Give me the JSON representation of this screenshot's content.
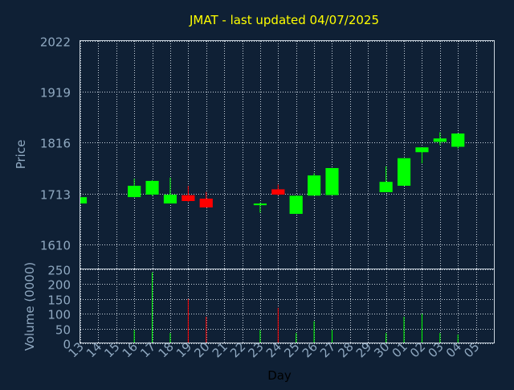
{
  "chart_data": {
    "type": "candlestick",
    "title": "JMAT - last updated 04/07/2025",
    "xlabel": "Day",
    "ylabel": "Price",
    "volume_label": "Volume (0000)",
    "price_ticks": [
      "2022",
      "1919",
      "1816",
      "1713",
      "1610"
    ],
    "volume_ticks": [
      "250",
      "200",
      "150",
      "100",
      "50",
      "0"
    ],
    "price_ylim": [
      1559,
      2022
    ],
    "volume_ylim": [
      0,
      250
    ],
    "x_labels": [
      "13",
      "14",
      "15",
      "16",
      "17",
      "18",
      "19",
      "20",
      "21",
      "22",
      "23",
      "24",
      "25",
      "26",
      "27",
      "28",
      "29",
      "30",
      "01",
      "02",
      "03",
      "04",
      "05"
    ],
    "grid": true,
    "colors": {
      "background": "#0f2035",
      "title": "#ffff00",
      "axis_text": "#8fa8c0",
      "grid": "#c8d2dc",
      "up": "#00ff00",
      "down": "#ff0000",
      "flat": "#00ff00"
    },
    "candles": [
      {
        "x": "13",
        "open": 1693,
        "close": 1705,
        "high": 1705,
        "low": 1693,
        "volume": 0
      },
      {
        "x": "16",
        "open": 1706,
        "close": 1728,
        "high": 1743,
        "low": 1705,
        "volume": 45
      },
      {
        "x": "17",
        "open": 1711,
        "close": 1738,
        "high": 1740,
        "low": 1708,
        "volume": 240
      },
      {
        "x": "18",
        "open": 1693,
        "close": 1710,
        "high": 1745,
        "low": 1693,
        "volume": 35
      },
      {
        "x": "19",
        "open": 1709,
        "close": 1698,
        "high": 1728,
        "low": 1696,
        "volume": 150
      },
      {
        "x": "20",
        "open": 1702,
        "close": 1685,
        "high": 1716,
        "low": 1685,
        "volume": 90
      },
      {
        "x": "23",
        "open": 1691,
        "close": 1692,
        "high": 1694,
        "low": 1674,
        "volume": 45
      },
      {
        "x": "24",
        "open": 1721,
        "close": 1711,
        "high": 1731,
        "low": 1709,
        "volume": 120
      },
      {
        "x": "25",
        "open": 1672,
        "close": 1708,
        "high": 1708,
        "low": 1672,
        "volume": 35
      },
      {
        "x": "26",
        "open": 1709,
        "close": 1749,
        "high": 1754,
        "low": 1709,
        "volume": 75
      },
      {
        "x": "27",
        "open": 1710,
        "close": 1764,
        "high": 1764,
        "low": 1710,
        "volume": 45
      },
      {
        "x": "30",
        "open": 1716,
        "close": 1736,
        "high": 1768,
        "low": 1716,
        "volume": 35
      },
      {
        "x": "01",
        "open": 1729,
        "close": 1784,
        "high": 1784,
        "low": 1729,
        "volume": 90
      },
      {
        "x": "02",
        "open": 1797,
        "close": 1806,
        "high": 1806,
        "low": 1774,
        "volume": 100
      },
      {
        "x": "03",
        "open": 1818,
        "close": 1824,
        "high": 1837,
        "low": 1811,
        "volume": 35
      },
      {
        "x": "04",
        "open": 1808,
        "close": 1834,
        "high": 1834,
        "low": 1804,
        "volume": 30
      }
    ]
  }
}
